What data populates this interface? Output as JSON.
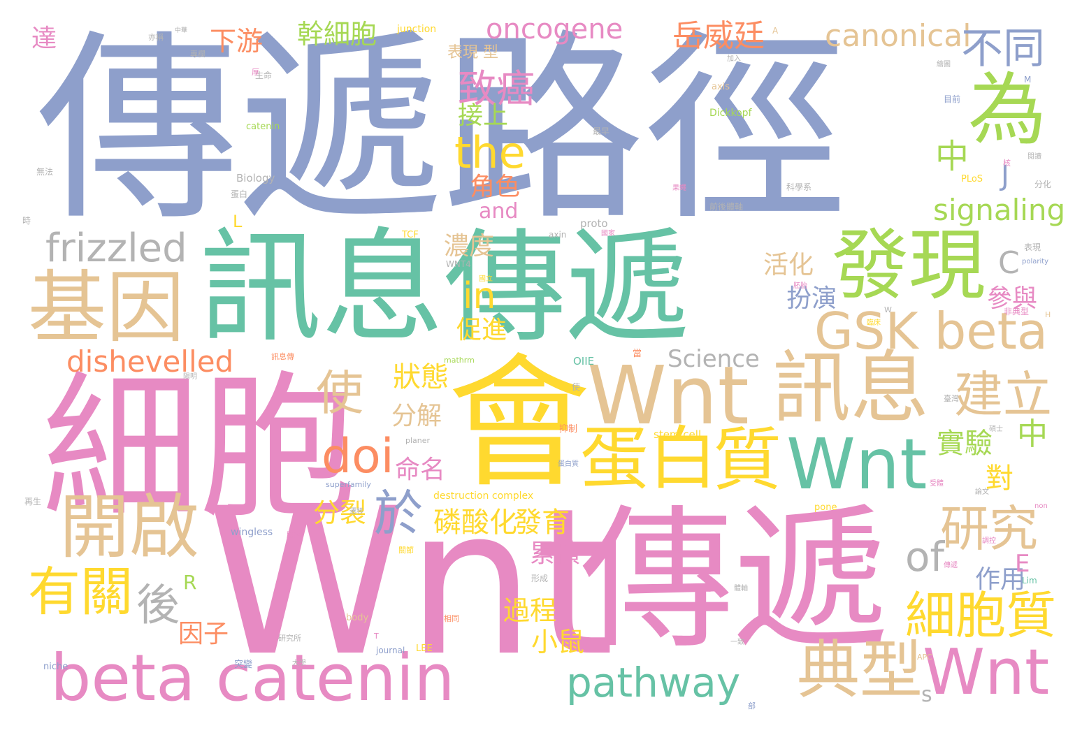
{
  "palette": {
    "blue": "#8E9FCB",
    "green": "#66C2A5",
    "pink": "#E78AC3",
    "tan": "#E5C494",
    "yellow": "#FFD92F",
    "lime": "#A6D854",
    "orange": "#FC8D62",
    "grey": "#B3B3B3"
  },
  "words": [
    {
      "text": "傳遞路徑",
      "color": "blue"
    },
    {
      "text": "訊息傳遞",
      "color": "green"
    },
    {
      "text": "細胞",
      "color": "pink"
    },
    {
      "text": "會",
      "color": "yellow"
    },
    {
      "text": "Wnt",
      "color": "pink"
    },
    {
      "text": "傳遞",
      "color": "pink"
    },
    {
      "text": "Wnt",
      "color": "tan"
    },
    {
      "text": "訊息",
      "color": "tan"
    },
    {
      "text": "發現",
      "color": "lime"
    },
    {
      "text": "基因",
      "color": "tan"
    },
    {
      "text": "蛋白",
      "color": "yellow"
    },
    {
      "text": "質",
      "color": "yellow"
    },
    {
      "text": "Wnt",
      "color": "green"
    },
    {
      "text": "beta catenin",
      "color": "pink"
    },
    {
      "text": "開啟",
      "color": "tan"
    },
    {
      "text": "為",
      "color": "lime"
    },
    {
      "text": "典型",
      "color": "tan"
    },
    {
      "text": "Wnt",
      "color": "pink"
    },
    {
      "text": "frizzled",
      "color": "grey"
    },
    {
      "text": "GSK beta",
      "color": "tan"
    },
    {
      "text": "pathway",
      "color": "green"
    },
    {
      "text": "有關",
      "color": "yellow"
    },
    {
      "text": "後",
      "color": "grey"
    },
    {
      "text": "細胞質",
      "color": "yellow"
    },
    {
      "text": "研究",
      "color": "tan"
    },
    {
      "text": "建立",
      "color": "tan"
    },
    {
      "text": "於",
      "color": "blue"
    },
    {
      "text": "doi",
      "color": "orange"
    },
    {
      "text": "使",
      "color": "tan"
    },
    {
      "text": "the",
      "color": "yellow"
    },
    {
      "text": "in",
      "color": "yellow"
    },
    {
      "text": "dishevelled",
      "color": "orange"
    },
    {
      "text": "oncogene",
      "color": "pink"
    },
    {
      "text": "canonical",
      "color": "tan"
    },
    {
      "text": "signaling",
      "color": "lime"
    },
    {
      "text": "不同",
      "color": "blue"
    },
    {
      "text": "致癌",
      "color": "pink"
    },
    {
      "text": "岳威廷",
      "color": "orange"
    },
    {
      "text": "中",
      "color": "lime"
    },
    {
      "text": "幹細胞",
      "color": "lime"
    },
    {
      "text": "下游",
      "color": "orange"
    },
    {
      "text": "達",
      "color": "pink"
    },
    {
      "text": "of",
      "color": "grey"
    },
    {
      "text": "Science",
      "color": "grey"
    },
    {
      "text": "分裂",
      "color": "yellow"
    },
    {
      "text": "磷酸化",
      "color": "yellow"
    },
    {
      "text": "發育",
      "color": "yellow"
    },
    {
      "text": "狀態",
      "color": "yellow"
    },
    {
      "text": "命名",
      "color": "pink"
    },
    {
      "text": "分解",
      "color": "tan"
    },
    {
      "text": "實驗",
      "color": "lime"
    },
    {
      "text": "中",
      "color": "lime"
    },
    {
      "text": "對",
      "color": "yellow"
    },
    {
      "text": "累積",
      "color": "pink"
    },
    {
      "text": "作用",
      "color": "blue"
    },
    {
      "text": "過程",
      "color": "yellow"
    },
    {
      "text": "小鼠",
      "color": "yellow"
    },
    {
      "text": "因子",
      "color": "orange"
    },
    {
      "text": "扮演",
      "color": "blue"
    },
    {
      "text": "活化",
      "color": "tan"
    },
    {
      "text": "參與",
      "color": "pink"
    },
    {
      "text": "濃度",
      "color": "tan"
    },
    {
      "text": "促進",
      "color": "yellow"
    },
    {
      "text": "角色",
      "color": "orange"
    },
    {
      "text": "and",
      "color": "pink"
    },
    {
      "text": "接上",
      "color": "lime"
    },
    {
      "text": "表現 型",
      "color": "tan"
    },
    {
      "text": "J",
      "color": "blue"
    },
    {
      "text": "C",
      "color": "grey"
    },
    {
      "text": "E",
      "color": "pink"
    },
    {
      "text": "R",
      "color": "lime"
    },
    {
      "text": "L",
      "color": "yellow"
    },
    {
      "text": "s",
      "color": "grey"
    },
    {
      "text": "junction",
      "color": "yellow"
    },
    {
      "text": "Dickkopf",
      "color": "lime"
    },
    {
      "text": "catenin",
      "color": "lime"
    },
    {
      "text": "Biology",
      "color": "grey"
    },
    {
      "text": "proto",
      "color": "grey"
    },
    {
      "text": "axin",
      "color": "grey"
    },
    {
      "text": "axis",
      "color": "tan"
    },
    {
      "text": "TCF",
      "color": "yellow"
    },
    {
      "text": "WNT4",
      "color": "grey"
    },
    {
      "text": "PLoS",
      "color": "yellow"
    },
    {
      "text": "mathrm",
      "color": "lime"
    },
    {
      "text": "OIIE",
      "color": "green"
    },
    {
      "text": "planer",
      "color": "grey"
    },
    {
      "text": "stem cell",
      "color": "yellow"
    },
    {
      "text": "superfamily",
      "color": "blue"
    },
    {
      "text": "destruction complex",
      "color": "yellow"
    },
    {
      "text": "wingless",
      "color": "blue"
    },
    {
      "text": "pone",
      "color": "yellow"
    },
    {
      "text": "body",
      "color": "tan"
    },
    {
      "text": "journal",
      "color": "blue"
    },
    {
      "text": "LEE",
      "color": "yellow"
    },
    {
      "text": "niche",
      "color": "blue"
    },
    {
      "text": "polarity",
      "color": "blue"
    },
    {
      "text": "Lim",
      "color": "green"
    },
    {
      "text": "non",
      "color": "pink"
    },
    {
      "text": "APC",
      "color": "tan"
    },
    {
      "text": "生命",
      "color": "grey"
    },
    {
      "text": "無法",
      "color": "grey"
    },
    {
      "text": "時",
      "color": "grey"
    },
    {
      "text": "蛋白",
      "color": "grey"
    },
    {
      "text": "科學系",
      "color": "grey"
    },
    {
      "text": "前後體軸",
      "color": "grey"
    },
    {
      "text": "分化",
      "color": "grey"
    },
    {
      "text": "非典型",
      "color": "pink"
    },
    {
      "text": "表現",
      "color": "grey"
    },
    {
      "text": "抑制",
      "color": "orange"
    },
    {
      "text": "形成",
      "color": "grey"
    },
    {
      "text": "突變",
      "color": "blue"
    },
    {
      "text": "再生",
      "color": "grey"
    },
    {
      "text": "A",
      "color": "tan"
    },
    {
      "text": "M",
      "color": "blue"
    },
    {
      "text": "W",
      "color": "grey"
    },
    {
      "text": "H",
      "color": "tan"
    },
    {
      "text": "T",
      "color": "pink"
    },
    {
      "text": "厚",
      "color": "pink"
    },
    {
      "text": "目前",
      "color": "blue"
    },
    {
      "text": "核",
      "color": "pink"
    },
    {
      "text": "當",
      "color": "orange"
    },
    {
      "text": "使",
      "color": "grey"
    },
    {
      "text": "部",
      "color": "blue"
    },
    {
      "text": "一致",
      "color": "grey"
    },
    {
      "text": "碩士",
      "color": "grey"
    },
    {
      "text": "論文",
      "color": "grey"
    },
    {
      "text": "閱讀",
      "color": "grey"
    },
    {
      "text": "繪圖",
      "color": "grey"
    },
    {
      "text": "國立",
      "color": "yellow"
    },
    {
      "text": "國家",
      "color": "pink"
    },
    {
      "text": "調控",
      "color": "pink"
    },
    {
      "text": "訊息傳",
      "color": "orange"
    },
    {
      "text": "傳遞",
      "color": "pink"
    },
    {
      "text": "中華",
      "color": "grey"
    },
    {
      "text": "亦稱",
      "color": "grey"
    },
    {
      "text": "專欄",
      "color": "grey"
    },
    {
      "text": "最早",
      "color": "grey"
    },
    {
      "text": "加入",
      "color": "grey"
    },
    {
      "text": "研究所",
      "color": "grey"
    },
    {
      "text": "臺灣",
      "color": "grey"
    },
    {
      "text": "陽明",
      "color": "grey"
    },
    {
      "text": "胚胎",
      "color": "pink"
    },
    {
      "text": "果蠅",
      "color": "pink"
    },
    {
      "text": "蛋白質",
      "color": "blue"
    },
    {
      "text": "受體",
      "color": "pink"
    },
    {
      "text": "遷移",
      "color": "grey"
    },
    {
      "text": "臨床",
      "color": "yellow"
    },
    {
      "text": "關節",
      "color": "yellow"
    },
    {
      "text": "腫瘤",
      "color": "pink"
    },
    {
      "text": "相同",
      "color": "orange"
    },
    {
      "text": "體軸",
      "color": "grey"
    },
    {
      "text": "大學",
      "color": "grey"
    }
  ]
}
